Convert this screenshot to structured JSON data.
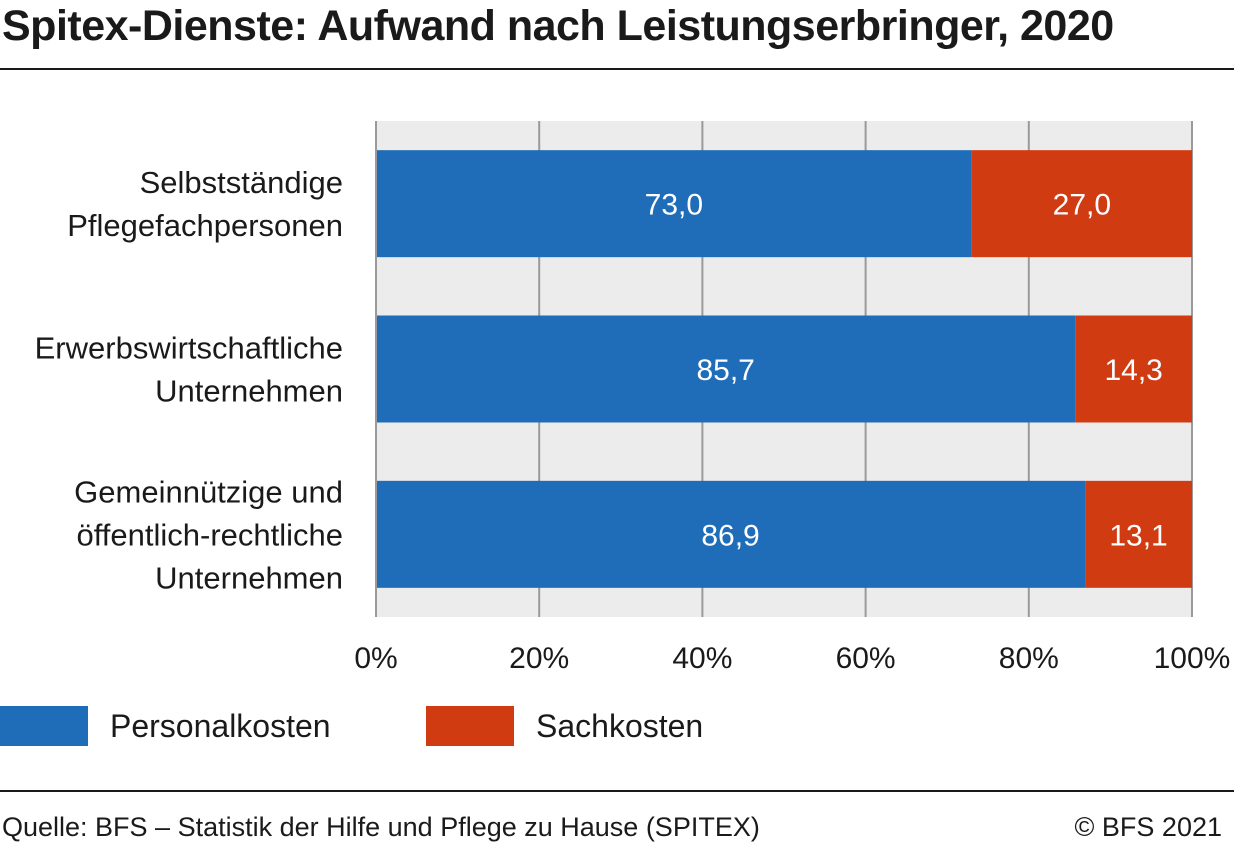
{
  "title": "Spitex-Dienste: Aufwand nach Leistungserbringer, 2020",
  "legend": [
    {
      "label": "Personalkosten",
      "color": "#1f6db8"
    },
    {
      "label": "Sachkosten",
      "color": "#d13b12"
    }
  ],
  "footer": {
    "source": "Quelle: BFS – Statistik der Hilfe und Pflege zu Hause (SPITEX)",
    "copyright": "© BFS 2021"
  },
  "chart_data": {
    "type": "bar",
    "orientation": "horizontal",
    "stacked": true,
    "categories": [
      [
        "Selbstständige",
        "Pflegefachpersonen"
      ],
      [
        "Erwerbswirtschaftliche",
        "Unternehmen"
      ],
      [
        "Gemeinnützige und",
        "öffentlich-rechtliche",
        "Unternehmen"
      ]
    ],
    "series": [
      {
        "name": "Personalkosten",
        "values": [
          73.0,
          85.7,
          86.9
        ],
        "labels": [
          "73,0",
          "85,7",
          "86,9"
        ],
        "color": "#1f6db8"
      },
      {
        "name": "Sachkosten",
        "values": [
          27.0,
          14.3,
          13.1
        ],
        "labels": [
          "27,0",
          "14,3",
          "13,1"
        ],
        "color": "#d13b12"
      }
    ],
    "xlim": [
      0,
      100
    ],
    "xticks": [
      "0%",
      "20%",
      "40%",
      "60%",
      "80%",
      "100%"
    ],
    "grid": true,
    "plot_background": "#ececec",
    "legend_position": "bottom-left"
  }
}
